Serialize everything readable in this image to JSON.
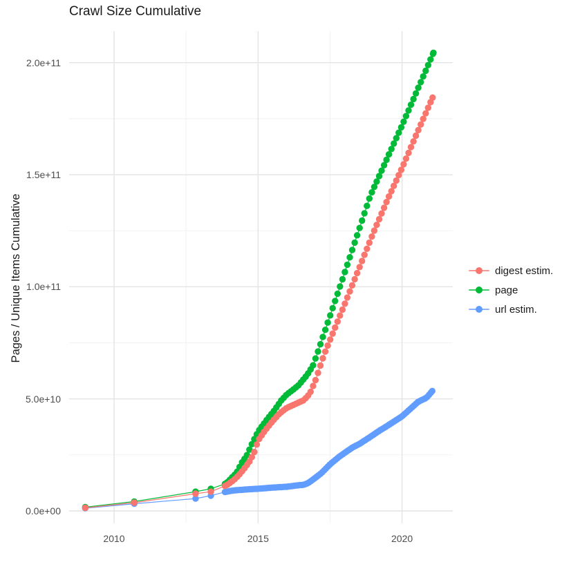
{
  "title": "Crawl Size Cumulative",
  "y_axis": {
    "title": "Pages / Unique Items Cumulative",
    "ticks": [
      {
        "value_e9": 0,
        "label": "0.0e+00"
      },
      {
        "value_e9": 50,
        "label": "5.0e+10"
      },
      {
        "value_e9": 100,
        "label": "1.0e+11"
      },
      {
        "value_e9": 150,
        "label": "1.5e+11"
      },
      {
        "value_e9": 200,
        "label": "2.0e+11"
      }
    ],
    "minor_e9": [
      25,
      75,
      125,
      175
    ]
  },
  "x_axis": {
    "ticks": [
      {
        "value": 2010,
        "label": "2010"
      },
      {
        "value": 2015,
        "label": "2015"
      },
      {
        "value": 2020,
        "label": "2020"
      }
    ],
    "minor": [
      2012.5,
      2017.5
    ]
  },
  "legend": {
    "items": [
      {
        "label": "digest estim.",
        "color": "#F8766D"
      },
      {
        "label": "page",
        "color": "#00BA38"
      },
      {
        "label": "url estim.",
        "color": "#619CFF"
      }
    ]
  },
  "colors": {
    "grid_major": "#e4e4e4",
    "grid_minor": "#f1f1f1",
    "tick_text": "#4d4d4d",
    "title_text": "#1a1a1a"
  },
  "chart_data": {
    "type": "scatter",
    "title": "Crawl Size Cumulative",
    "xlabel": "",
    "ylabel": "Pages / Unique Items Cumulative",
    "x_domain": [
      2008.4,
      2021.8
    ],
    "ylim_e9": [
      0,
      213
    ],
    "y_unit": "pages / unique items, values in billions (1e9)",
    "grid": true,
    "legend_position": "right",
    "dense_from": 2013.85,
    "series": [
      {
        "name": "digest estim.",
        "color": "#F8766D",
        "dot_step_years": 0.085,
        "points_e9": [
          [
            2009.0,
            1.4
          ],
          [
            2010.7,
            3.7
          ],
          [
            2012.83,
            7.7
          ],
          [
            2013.36,
            8.6
          ],
          [
            2013.9,
            11.4
          ],
          [
            2014.13,
            13.5
          ],
          [
            2014.3,
            15.5
          ],
          [
            2014.5,
            18.5
          ],
          [
            2014.7,
            22
          ],
          [
            2014.85,
            25.5
          ],
          [
            2015.0,
            31.4
          ],
          [
            2015.25,
            36
          ],
          [
            2015.5,
            40
          ],
          [
            2015.75,
            43.5
          ],
          [
            2016.0,
            46
          ],
          [
            2016.3,
            47.7
          ],
          [
            2016.6,
            49.5
          ],
          [
            2016.8,
            52.4
          ],
          [
            2017.0,
            58.5
          ],
          [
            2017.3,
            70
          ],
          [
            2018.0,
            92
          ],
          [
            2019.0,
            124
          ],
          [
            2019.5,
            139
          ],
          [
            2020.0,
            153
          ],
          [
            2020.5,
            168
          ],
          [
            2021.06,
            184.4
          ]
        ]
      },
      {
        "name": "page",
        "color": "#00BA38",
        "dot_step_years": 0.085,
        "points_e9": [
          [
            2009.0,
            1.7
          ],
          [
            2010.7,
            4.2
          ],
          [
            2012.83,
            8.6
          ],
          [
            2013.36,
            9.9
          ],
          [
            2013.9,
            12.3
          ],
          [
            2014.13,
            15.4
          ],
          [
            2014.25,
            16.9
          ],
          [
            2014.44,
            21.6
          ],
          [
            2014.6,
            24.5
          ],
          [
            2014.8,
            30.2
          ],
          [
            2015.0,
            35.4
          ],
          [
            2015.3,
            40.6
          ],
          [
            2015.55,
            44.6
          ],
          [
            2015.8,
            49.2
          ],
          [
            2016.0,
            52
          ],
          [
            2016.2,
            53.9
          ],
          [
            2016.4,
            56
          ],
          [
            2016.7,
            60.6
          ],
          [
            2016.9,
            64.6
          ],
          [
            2017.05,
            70
          ],
          [
            2018.0,
            106
          ],
          [
            2018.9,
            140.7
          ],
          [
            2020.0,
            172
          ],
          [
            2021.09,
            204.4
          ]
        ]
      },
      {
        "name": "url estim.",
        "color": "#619CFF",
        "dot_step_years": 0.065,
        "points_e9": [
          [
            2009.0,
            1.2
          ],
          [
            2010.7,
            3.2
          ],
          [
            2012.83,
            5.5
          ],
          [
            2013.36,
            6.8
          ],
          [
            2013.9,
            8.6
          ],
          [
            2014.2,
            9.2
          ],
          [
            2014.6,
            9.6
          ],
          [
            2015.0,
            9.9
          ],
          [
            2015.5,
            10.4
          ],
          [
            2016.0,
            10.8
          ],
          [
            2016.36,
            11.4
          ],
          [
            2016.6,
            11.7
          ],
          [
            2016.75,
            12.5
          ],
          [
            2016.96,
            14.5
          ],
          [
            2017.2,
            16.9
          ],
          [
            2017.51,
            20.9
          ],
          [
            2017.8,
            24.0
          ],
          [
            2018.04,
            26.2
          ],
          [
            2018.28,
            28.3
          ],
          [
            2018.52,
            29.9
          ],
          [
            2018.88,
            32.9
          ],
          [
            2019.24,
            36.0
          ],
          [
            2019.48,
            37.9
          ],
          [
            2020.0,
            42.2
          ],
          [
            2020.56,
            48.7
          ],
          [
            2020.85,
            50.5
          ],
          [
            2021.05,
            53.5
          ]
        ]
      }
    ]
  }
}
